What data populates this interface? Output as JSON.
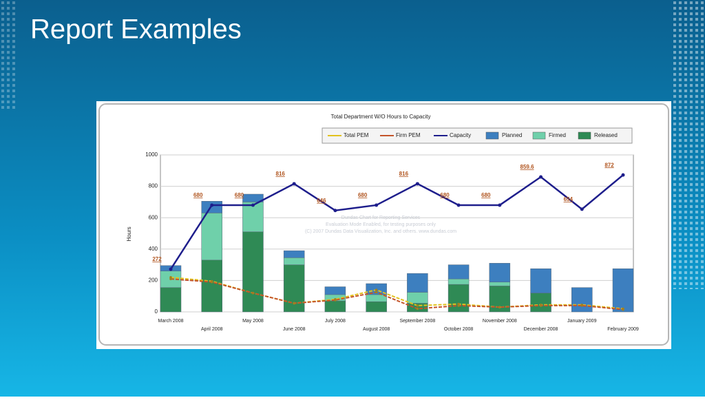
{
  "page_title": "Report Examples",
  "chart_data": {
    "type": "bar-line",
    "title": "Total Department W/O Hours to Capacity",
    "y_label": "Hours",
    "annotations": [
      "Dundas Chart for Reporting Services",
      "Evaluation Mode Enabled, for testing purposes only",
      "(C) 2007 Dundas Data Visualization, Inc. and others. www.dundas.com"
    ],
    "categories": [
      "March 2008",
      "April 2008",
      "May 2008",
      "June 2008",
      "July 2008",
      "August 2008",
      "September 2008",
      "October 2008",
      "November 2008",
      "December 2008",
      "January 2009",
      "February 2009"
    ],
    "ylim": [
      0,
      1000
    ],
    "yticks": [
      0,
      200,
      400,
      600,
      800,
      1000
    ],
    "grid": true,
    "series": [
      {
        "name": "Total PEM",
        "kind": "line",
        "color": "#e2c21e",
        "values": [
          220,
          195,
          120,
          55,
          80,
          140,
          40,
          50,
          30,
          45,
          45,
          20
        ]
      },
      {
        "name": "Firm PEM",
        "kind": "line",
        "color": "#c4542a",
        "values": [
          210,
          190,
          120,
          55,
          75,
          125,
          20,
          40,
          30,
          40,
          40,
          15
        ]
      },
      {
        "name": "Capacity",
        "kind": "line",
        "color": "#1e1e8c",
        "labels": true,
        "values": [
          272,
          680,
          680,
          816,
          646,
          680,
          816,
          680,
          680,
          859.6,
          654,
          872
        ]
      },
      {
        "name": "Planned",
        "kind": "stack",
        "color": "#3d7fbf",
        "values": [
          35,
          75,
          50,
          45,
          50,
          70,
          120,
          90,
          120,
          155,
          155,
          275
        ]
      },
      {
        "name": "Firmed",
        "kind": "stack",
        "color": "#6fd0aa",
        "values": [
          105,
          300,
          190,
          45,
          40,
          45,
          70,
          35,
          25,
          0,
          0,
          0
        ]
      },
      {
        "name": "Released",
        "kind": "stack",
        "color": "#2f8a55",
        "values": [
          155,
          330,
          510,
          300,
          70,
          65,
          55,
          175,
          165,
          120,
          0,
          0
        ]
      }
    ]
  }
}
